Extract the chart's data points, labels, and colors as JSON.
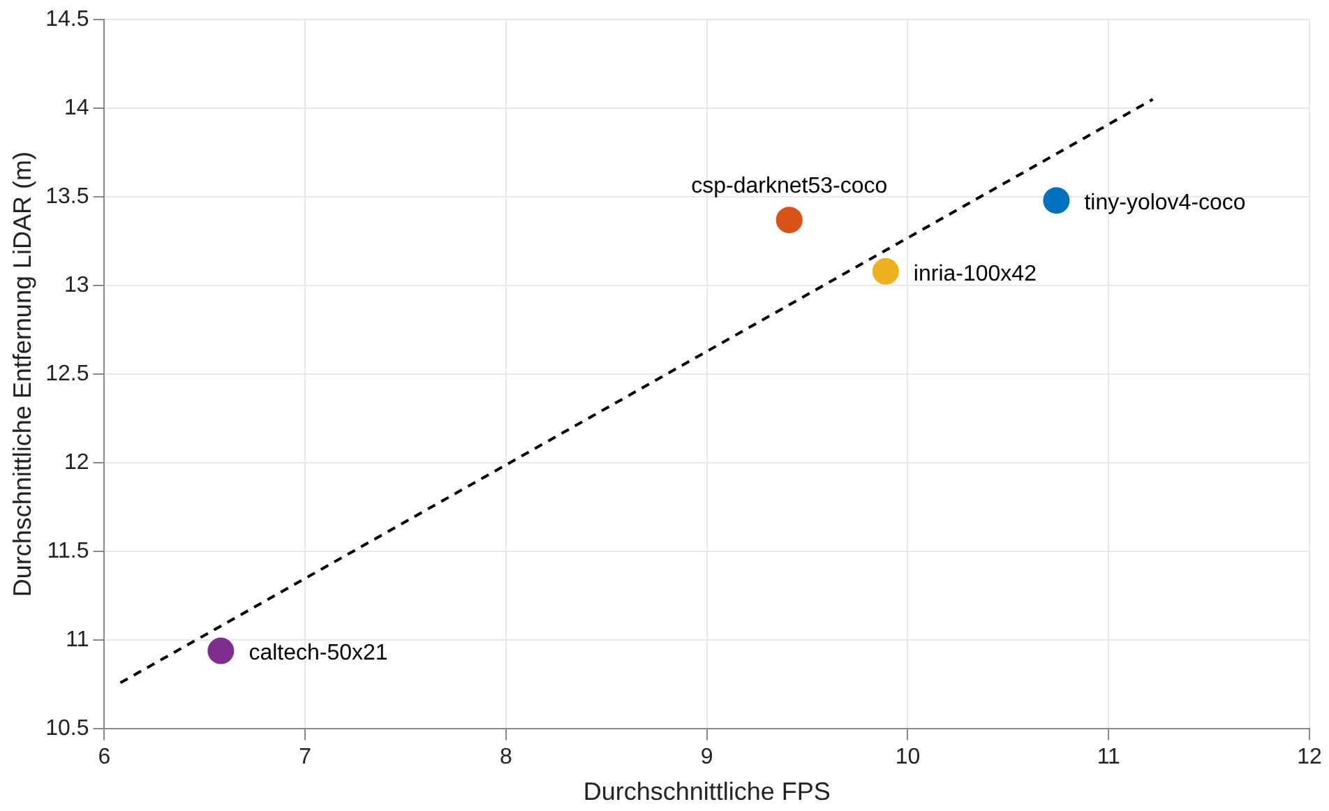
{
  "chart_data": {
    "type": "scatter",
    "xlabel": "Durchschnittliche FPS",
    "ylabel": "Durchschnittliche Entfernung LiDAR (m)",
    "xlim": [
      6,
      12
    ],
    "xticks": [
      6,
      7,
      8,
      9,
      10,
      11,
      12
    ],
    "ylim": [
      10.5,
      14.5
    ],
    "yticks": [
      10.5,
      11,
      11.5,
      12,
      12.5,
      13,
      13.5,
      14,
      14.5
    ],
    "grid": true,
    "legend": false,
    "marker": "circle",
    "series": [
      {
        "name": "caltech-50x21",
        "color": "#7e2f8e",
        "x": [
          6.58
        ],
        "values": [
          10.94
        ]
      },
      {
        "name": "csp-darknet53-coco",
        "color": "#d95319",
        "x": [
          9.41
        ],
        "values": [
          13.37
        ]
      },
      {
        "name": "inria-100x42",
        "color": "#edb120",
        "x": [
          9.89
        ],
        "values": [
          13.08
        ]
      },
      {
        "name": "tiny-yolov4-coco",
        "color": "#0072bd",
        "x": [
          10.74
        ],
        "values": [
          13.48
        ]
      },
      {
        "type": "line",
        "color": "#000000",
        "line_style": "dashed",
        "marker": "none",
        "x": [
          6.08,
          11.22
        ],
        "values": [
          10.76,
          14.05
        ]
      }
    ]
  }
}
